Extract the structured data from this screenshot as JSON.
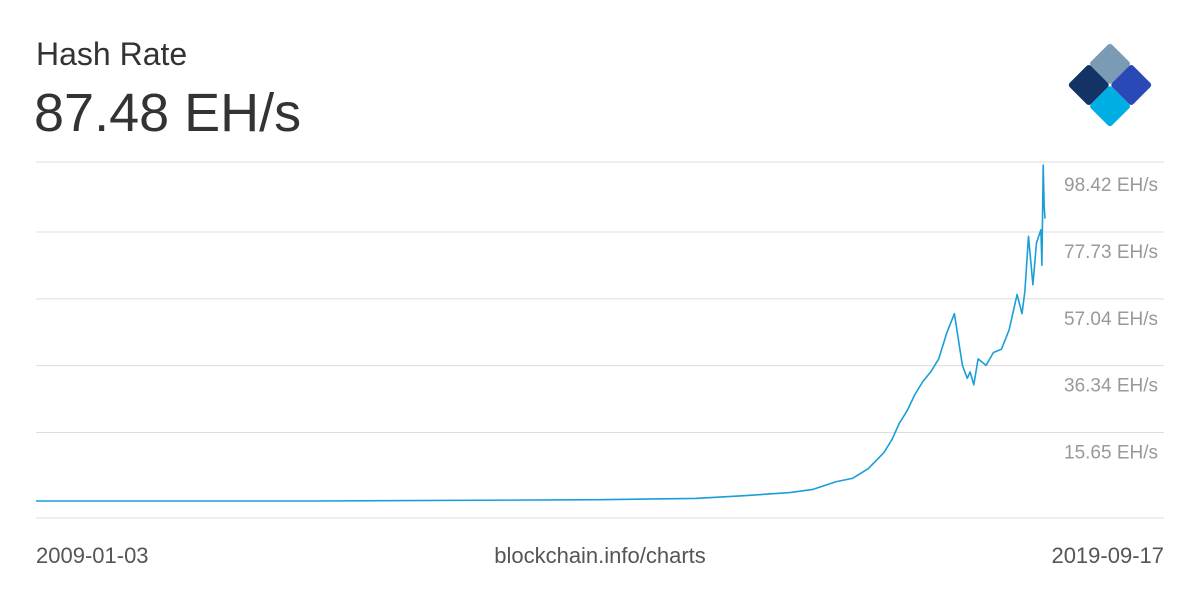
{
  "header": {
    "title": "Hash Rate",
    "current_value": "87.48 EH/s"
  },
  "footer": {
    "start_date": "2009-01-03",
    "source": "blockchain.info/charts",
    "end_date": "2019-09-17"
  },
  "logo": {
    "icon": "blockchain-logo-icon",
    "colors": [
      "#123364",
      "#7b9ab4",
      "#2a49b7",
      "#00aee6",
      "#b1d5ea"
    ]
  },
  "colors": {
    "line": "#1a9ed8",
    "grid": "#dddddd",
    "axis_text": "#999999",
    "text": "#333333"
  },
  "chart_data": {
    "type": "line",
    "title": "Hash Rate",
    "xlabel": "",
    "ylabel": "",
    "unit": "EH/s",
    "x_range": [
      "2009-01-03",
      "2019-09-17"
    ],
    "ylim": [
      0,
      105
    ],
    "y_ticks": [
      15.65,
      36.34,
      57.04,
      77.73,
      98.42
    ],
    "y_tick_labels": [
      "15.65 EH/s",
      "36.34 EH/s",
      "57.04 EH/s",
      "77.73 EH/s",
      "98.42 EH/s"
    ],
    "grid": true,
    "legend": "none",
    "series": [
      {
        "x": [
          "2009-01-03",
          "2012-01-01",
          "2015-01-01",
          "2016-01-01",
          "2016-07-01",
          "2017-01-01",
          "2017-04-01",
          "2017-07-01",
          "2017-09-01",
          "2017-11-01",
          "2018-01-01",
          "2018-02-01",
          "2018-03-01",
          "2018-04-01",
          "2018-05-01",
          "2018-06-01",
          "2018-07-01",
          "2018-08-01",
          "2018-09-01",
          "2018-10-01",
          "2018-11-01",
          "2018-11-20",
          "2018-12-01",
          "2018-12-15",
          "2019-01-01",
          "2019-02-01",
          "2019-03-01",
          "2019-04-01",
          "2019-05-01",
          "2019-06-01",
          "2019-06-20",
          "2019-07-01",
          "2019-07-15",
          "2019-08-01",
          "2019-08-15",
          "2019-09-01",
          "2019-09-05",
          "2019-09-10",
          "2019-09-14",
          "2019-09-17"
        ],
        "values": [
          0,
          0,
          0.4,
          0.8,
          1.6,
          2.6,
          3.6,
          6,
          7,
          10,
          15,
          19,
          24,
          28,
          33,
          37,
          40,
          44,
          52,
          58,
          42,
          38,
          40,
          36,
          44,
          42,
          46,
          47,
          53,
          64,
          58,
          65,
          82,
          67,
          80,
          84,
          73,
          104,
          91,
          87.48
        ]
      }
    ]
  }
}
